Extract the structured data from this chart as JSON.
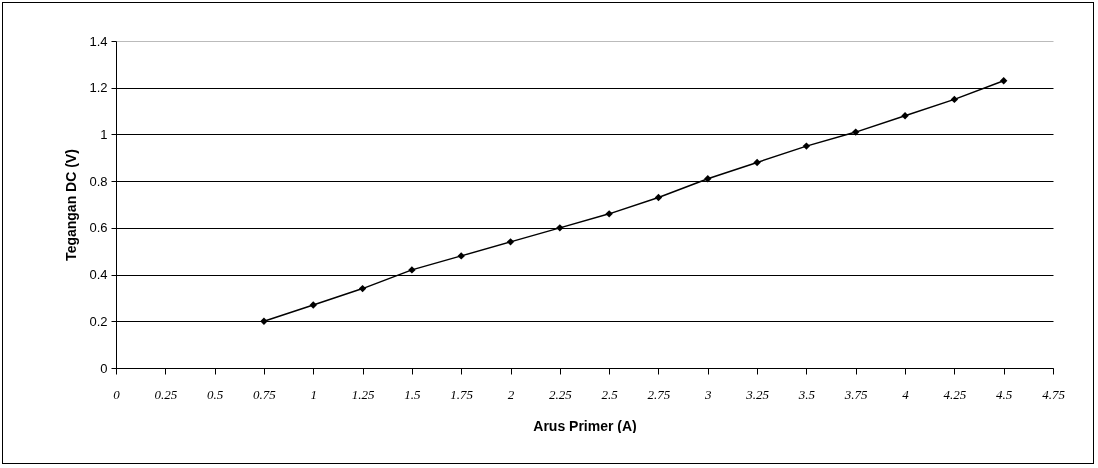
{
  "chart_data": {
    "type": "line",
    "xlabel": "Arus Primer (A)",
    "ylabel": "Tegangan DC (V)",
    "x": [
      0.75,
      1,
      1.25,
      1.5,
      1.75,
      2,
      2.25,
      2.5,
      2.75,
      3,
      3.25,
      3.5,
      3.75,
      4,
      4.25,
      4.5
    ],
    "series": [
      {
        "color": "#000000",
        "values": [
          0.2,
          0.27,
          0.34,
          0.42,
          0.48,
          0.54,
          0.6,
          0.66,
          0.73,
          0.81,
          0.88,
          0.95,
          1.01,
          1.08,
          1.15,
          1.23
        ]
      }
    ],
    "xlim": [
      0,
      4.75
    ],
    "xticks": [
      0,
      0.25,
      0.5,
      0.75,
      1,
      1.25,
      1.5,
      1.75,
      2,
      2.25,
      2.5,
      2.75,
      3,
      3.25,
      3.5,
      3.75,
      4,
      4.25,
      4.5,
      4.75
    ],
    "ylim": [
      0,
      1.4
    ],
    "yticks": [
      0,
      0.2,
      0.4,
      0.6,
      0.8,
      1,
      1.2,
      1.4
    ],
    "grid": "y",
    "marker": "diamond",
    "line_style": "solid"
  }
}
